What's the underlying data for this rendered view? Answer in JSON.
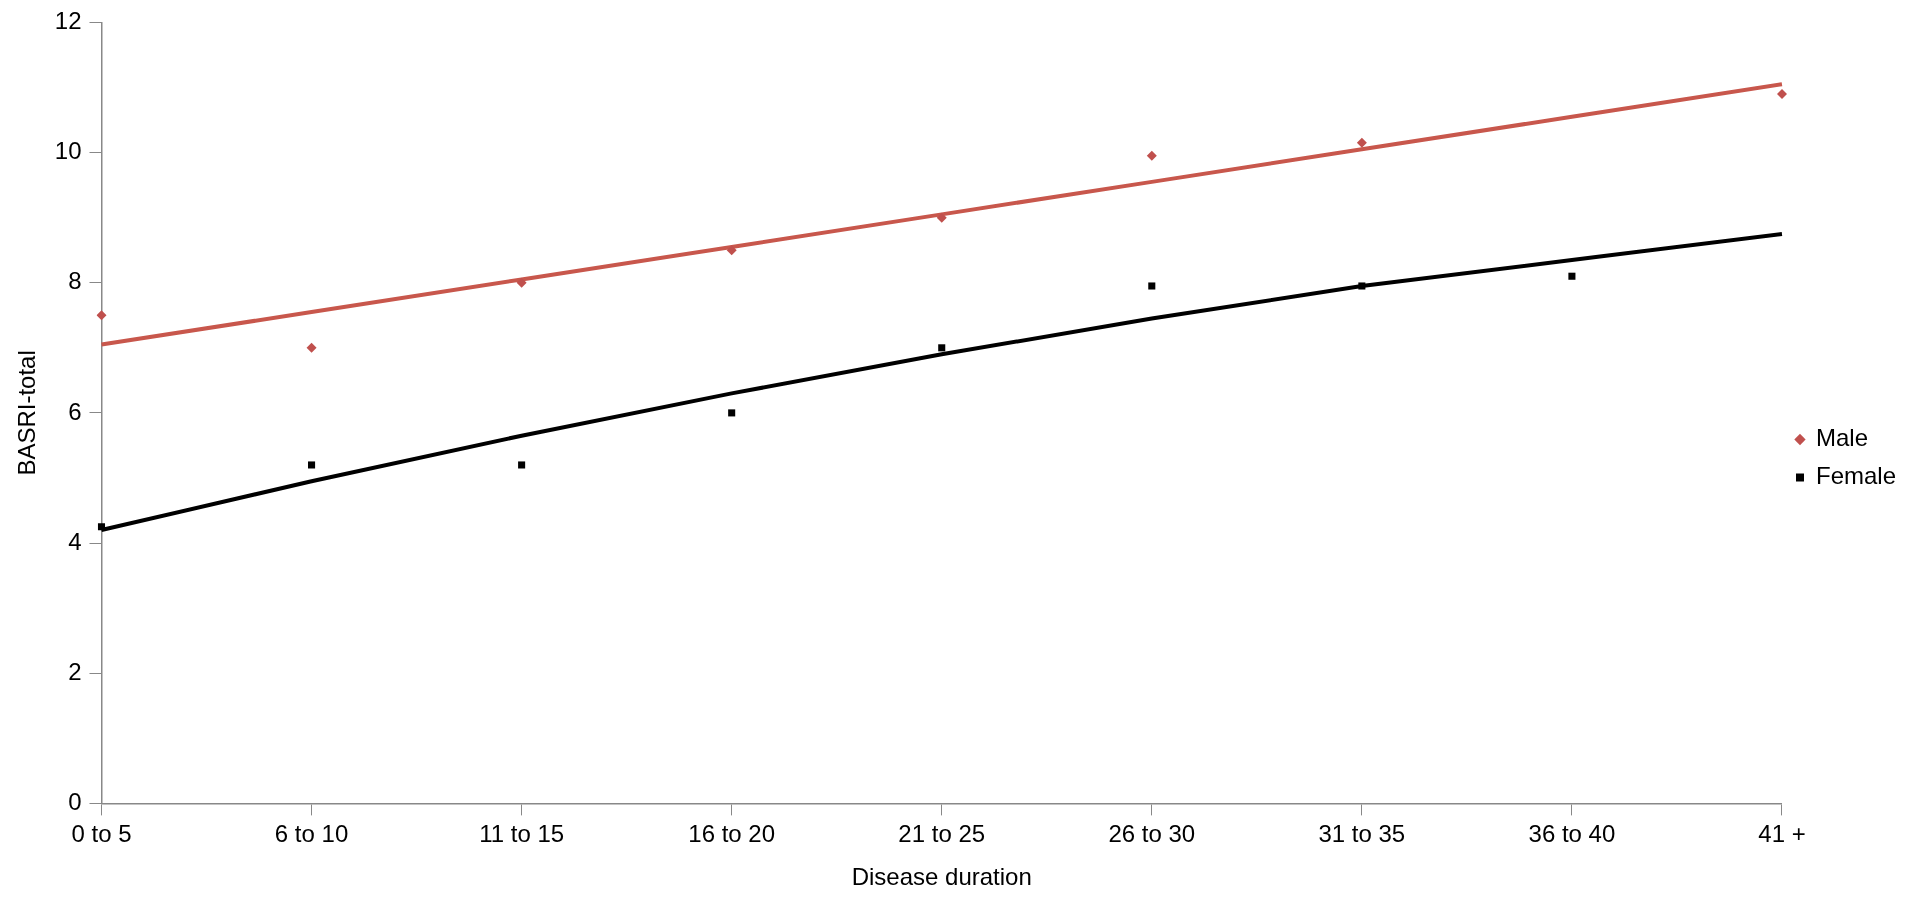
{
  "chart_data": {
    "type": "scatter",
    "xlabel": "Disease duration",
    "ylabel": "BASRI-total",
    "categories": [
      "0 to 5",
      "6 to 10",
      "11 to 15",
      "16 to 20",
      "21 to 25",
      "26 to 30",
      "31 to 35",
      "36 to 40",
      "41 +"
    ],
    "ylim": [
      0,
      12
    ],
    "yticks": [
      0,
      2,
      4,
      6,
      8,
      10,
      12
    ],
    "grid": false,
    "legend": "right",
    "series": [
      {
        "name": "Male",
        "marker": "diamond",
        "color": "#c0504d",
        "values": [
          7.5,
          7.0,
          8.0,
          8.5,
          9.0,
          9.95,
          10.15,
          null,
          10.9
        ]
      },
      {
        "name": "Female",
        "marker": "square",
        "color": "#000000",
        "values": [
          4.25,
          5.2,
          5.2,
          6.0,
          7.0,
          7.95,
          7.95,
          8.1,
          null
        ]
      },
      {
        "type": "line",
        "marker": "none",
        "color": "#c8574c",
        "values": [
          7.05,
          7.55,
          8.05,
          8.55,
          9.05,
          9.55,
          10.05,
          10.55,
          11.05
        ]
      },
      {
        "type": "line",
        "marker": "none",
        "color": "#000000",
        "values": [
          4.2,
          4.95,
          5.65,
          6.3,
          6.9,
          7.45,
          7.95,
          8.35,
          8.75
        ]
      }
    ]
  }
}
